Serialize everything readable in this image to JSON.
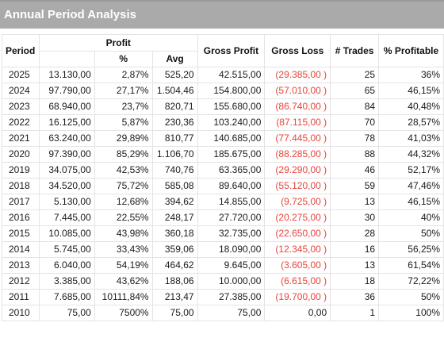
{
  "title": "Annual Period Analysis",
  "headers": {
    "period": "Period",
    "profit": "Profit",
    "profit_pct": "%",
    "profit_avg": "Avg",
    "gross_profit": "Gross Profit",
    "gross_loss": "Gross Loss",
    "trades": "# Trades",
    "pct_profitable": "% Profitable"
  },
  "colors": {
    "title_bg": "#aaaaaa",
    "loss_text": "#e8433b"
  },
  "rows": [
    {
      "period": "2025",
      "profit": "13.130,00",
      "pct": "2,87%",
      "avg": "525,20",
      "gross_profit": "42.515,00",
      "gross_loss": "(29.385,00 )",
      "trades": "25",
      "profitable": "36%"
    },
    {
      "period": "2024",
      "profit": "97.790,00",
      "pct": "27,17%",
      "avg": "1.504,46",
      "gross_profit": "154.800,00",
      "gross_loss": "(57.010,00 )",
      "trades": "65",
      "profitable": "46,15%"
    },
    {
      "period": "2023",
      "profit": "68.940,00",
      "pct": "23,7%",
      "avg": "820,71",
      "gross_profit": "155.680,00",
      "gross_loss": "(86.740,00 )",
      "trades": "84",
      "profitable": "40,48%"
    },
    {
      "period": "2022",
      "profit": "16.125,00",
      "pct": "5,87%",
      "avg": "230,36",
      "gross_profit": "103.240,00",
      "gross_loss": "(87.115,00 )",
      "trades": "70",
      "profitable": "28,57%"
    },
    {
      "period": "2021",
      "profit": "63.240,00",
      "pct": "29,89%",
      "avg": "810,77",
      "gross_profit": "140.685,00",
      "gross_loss": "(77.445,00 )",
      "trades": "78",
      "profitable": "41,03%"
    },
    {
      "period": "2020",
      "profit": "97.390,00",
      "pct": "85,29%",
      "avg": "1.106,70",
      "gross_profit": "185.675,00",
      "gross_loss": "(88.285,00 )",
      "trades": "88",
      "profitable": "44,32%"
    },
    {
      "period": "2019",
      "profit": "34.075,00",
      "pct": "42,53%",
      "avg": "740,76",
      "gross_profit": "63.365,00",
      "gross_loss": "(29.290,00 )",
      "trades": "46",
      "profitable": "52,17%"
    },
    {
      "period": "2018",
      "profit": "34.520,00",
      "pct": "75,72%",
      "avg": "585,08",
      "gross_profit": "89.640,00",
      "gross_loss": "(55.120,00 )",
      "trades": "59",
      "profitable": "47,46%"
    },
    {
      "period": "2017",
      "profit": "5.130,00",
      "pct": "12,68%",
      "avg": "394,62",
      "gross_profit": "14.855,00",
      "gross_loss": "(9.725,00 )",
      "trades": "13",
      "profitable": "46,15%"
    },
    {
      "period": "2016",
      "profit": "7.445,00",
      "pct": "22,55%",
      "avg": "248,17",
      "gross_profit": "27.720,00",
      "gross_loss": "(20.275,00 )",
      "trades": "30",
      "profitable": "40%"
    },
    {
      "period": "2015",
      "profit": "10.085,00",
      "pct": "43,98%",
      "avg": "360,18",
      "gross_profit": "32.735,00",
      "gross_loss": "(22.650,00 )",
      "trades": "28",
      "profitable": "50%"
    },
    {
      "period": "2014",
      "profit": "5.745,00",
      "pct": "33,43%",
      "avg": "359,06",
      "gross_profit": "18.090,00",
      "gross_loss": "(12.345,00 )",
      "trades": "16",
      "profitable": "56,25%"
    },
    {
      "period": "2013",
      "profit": "6.040,00",
      "pct": "54,19%",
      "avg": "464,62",
      "gross_profit": "9.645,00",
      "gross_loss": "(3.605,00 )",
      "trades": "13",
      "profitable": "61,54%"
    },
    {
      "period": "2012",
      "profit": "3.385,00",
      "pct": "43,62%",
      "avg": "188,06",
      "gross_profit": "10.000,00",
      "gross_loss": "(6.615,00 )",
      "trades": "18",
      "profitable": "72,22%"
    },
    {
      "period": "2011",
      "profit": "7.685,00",
      "pct": "10111,84%",
      "avg": "213,47",
      "gross_profit": "27.385,00",
      "gross_loss": "(19.700,00 )",
      "trades": "36",
      "profitable": "50%"
    },
    {
      "period": "2010",
      "profit": "75,00",
      "pct": "7500%",
      "avg": "75,00",
      "gross_profit": "75,00",
      "gross_loss": "0,00",
      "trades": "1",
      "profitable": "100%"
    }
  ]
}
